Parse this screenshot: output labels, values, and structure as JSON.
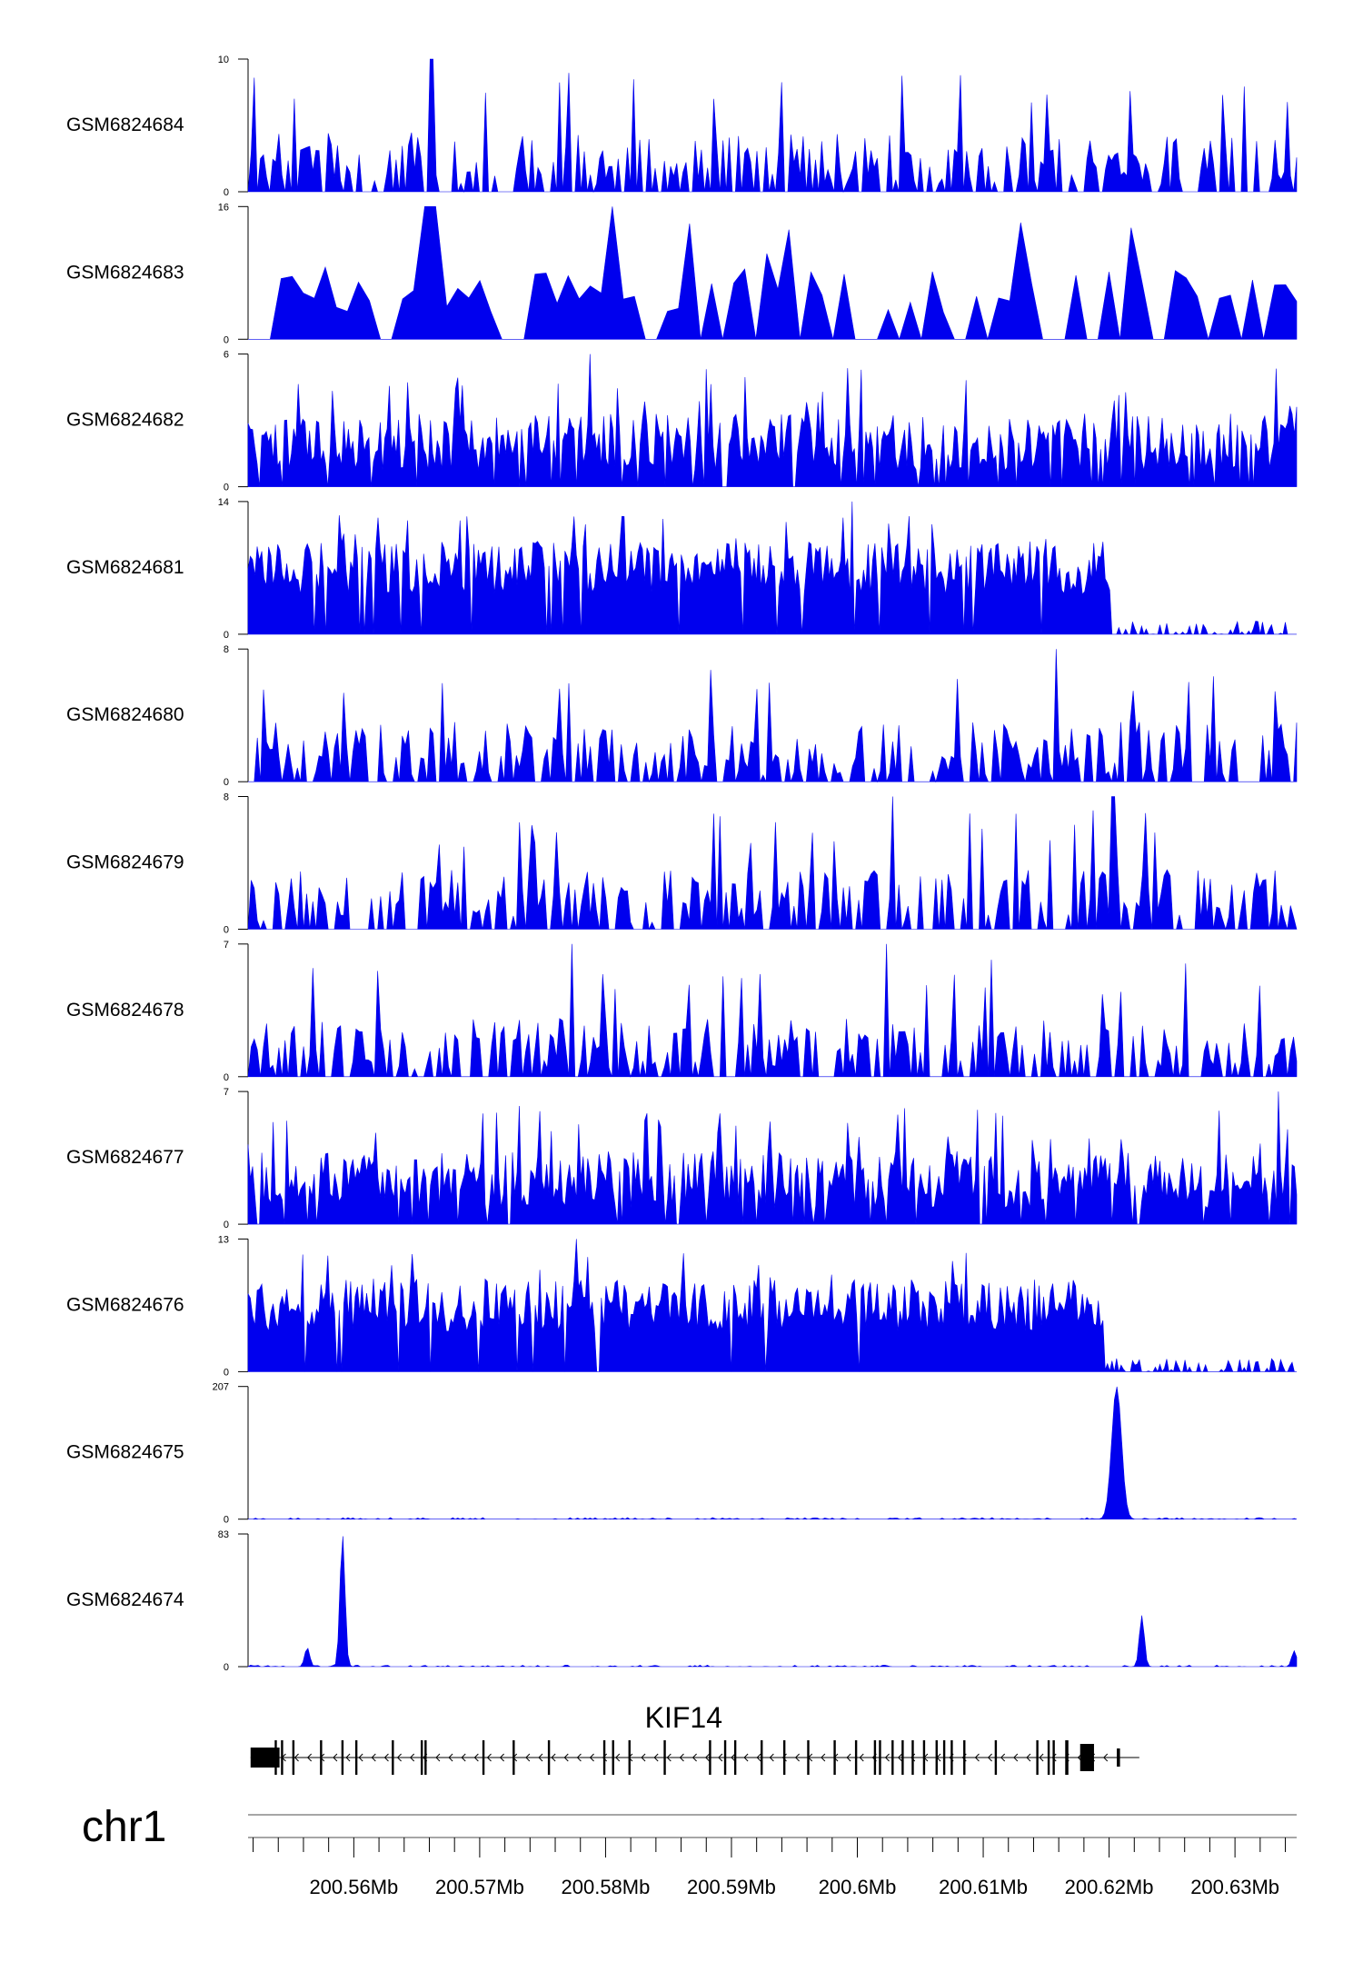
{
  "chart_data": {
    "type": "area",
    "chromosome": "chr1",
    "gene": {
      "name": "KIF14",
      "strand": "-"
    },
    "x_axis": {
      "tick_labels": [
        "200.56Mb",
        "200.57Mb",
        "200.58Mb",
        "200.59Mb",
        "200.6Mb",
        "200.61Mb",
        "200.62Mb",
        "200.63Mb"
      ],
      "tick_values_mb": [
        200.56,
        200.57,
        200.58,
        200.59,
        200.6,
        200.61,
        200.62,
        200.63
      ],
      "range_mb": [
        200.5516,
        200.6349
      ]
    },
    "series": [
      {
        "name": "GSM6824684",
        "ymax": 10,
        "ymin": 0,
        "pattern": "sparse",
        "peaks": [
          [
            200.5662,
            10
          ]
        ],
        "color": "#0000ee"
      },
      {
        "name": "GSM6824683",
        "ymax": 16,
        "ymin": 0,
        "pattern": "triangle",
        "peaks": [
          [
            200.5661,
            16
          ],
          [
            200.5804,
            16
          ]
        ],
        "color": "#0000ee"
      },
      {
        "name": "GSM6824682",
        "ymax": 6,
        "ymin": 0,
        "pattern": "dense",
        "peaks": [
          [
            200.5788,
            6
          ]
        ],
        "color": "#0000ee"
      },
      {
        "name": "GSM6824681",
        "ymax": 14,
        "ymin": 0,
        "pattern": "dense-drop",
        "drop_at_mb": 200.6202,
        "peaks": [
          [
            200.5996,
            14
          ]
        ],
        "color": "#0000ee"
      },
      {
        "name": "GSM6824680",
        "ymax": 8,
        "ymin": 0,
        "pattern": "sparse",
        "peaks": [
          [
            200.6158,
            8
          ]
        ],
        "color": "#0000ee"
      },
      {
        "name": "GSM6824679",
        "ymax": 8,
        "ymin": 0,
        "pattern": "sparse",
        "peaks": [
          [
            200.6029,
            8
          ],
          [
            200.6203,
            8
          ]
        ],
        "color": "#0000ee"
      },
      {
        "name": "GSM6824678",
        "ymax": 7,
        "ymin": 0,
        "pattern": "sparse",
        "peaks": [
          [
            200.5774,
            7
          ],
          [
            200.6024,
            7
          ]
        ],
        "color": "#0000ee"
      },
      {
        "name": "GSM6824677",
        "ymax": 7,
        "ymin": 0,
        "pattern": "dense",
        "peaks": [
          [
            200.6334,
            7
          ]
        ],
        "color": "#0000ee"
      },
      {
        "name": "GSM6824676",
        "ymax": 13,
        "ymin": 0,
        "pattern": "dense-drop",
        "drop_at_mb": 200.6196,
        "peaks": [
          [
            200.5777,
            13
          ]
        ],
        "color": "#0000ee"
      },
      {
        "name": "GSM6824675",
        "ymax": 207,
        "ymin": 0,
        "pattern": "peaks",
        "peaks": [
          [
            200.6206,
            207
          ]
        ],
        "color": "#0000ee"
      },
      {
        "name": "GSM6824674",
        "ymax": 83,
        "ymin": 0,
        "pattern": "peaks",
        "peaks": [
          [
            200.5591,
            83
          ],
          [
            200.5563,
            12
          ],
          [
            200.6226,
            32
          ],
          [
            200.6347,
            10
          ]
        ],
        "color": "#0000ee"
      }
    ]
  },
  "colors": {
    "signal": "#0000ee",
    "gene_model": "#000000",
    "axis": "#000000"
  }
}
